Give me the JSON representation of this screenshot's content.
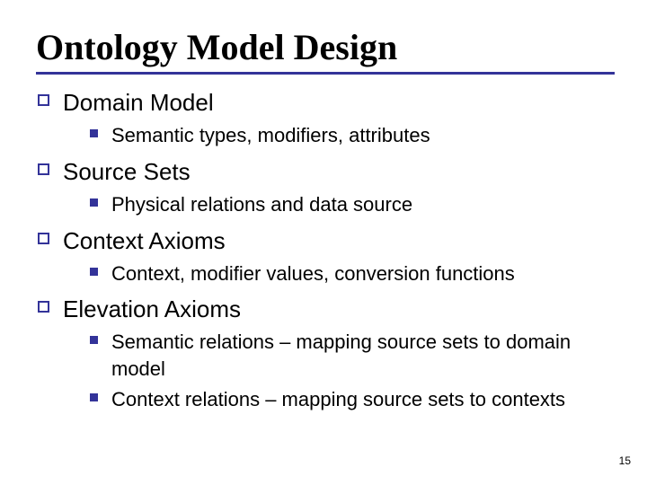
{
  "title": "Ontology Model Design",
  "title_fontsize": 40,
  "title_color": "#000000",
  "underline_color": "#333399",
  "underline_thickness": 3,
  "outer_bullet_border_color": "#333399",
  "outer_bullet_border_width": 2,
  "outer_bullet_size": 13,
  "outer_text_color": "#000000",
  "outer_fontsize": 26,
  "inner_bullet_color": "#333399",
  "inner_bullet_size": 9,
  "inner_text_color": "#000000",
  "inner_fontsize": 22,
  "page_number": "15",
  "page_number_fontsize": 12,
  "page_number_color": "#000000",
  "background_color": "#ffffff",
  "sections": [
    {
      "label": "Domain Model",
      "items": [
        "Semantic types, modifiers, attributes"
      ]
    },
    {
      "label": "Source Sets",
      "items": [
        "Physical relations and data source"
      ]
    },
    {
      "label": "Context Axioms",
      "items": [
        "Context, modifier values, conversion functions"
      ]
    },
    {
      "label": "Elevation Axioms",
      "items": [
        "Semantic relations – mapping source sets to domain model",
        "Context relations – mapping source sets to contexts"
      ]
    }
  ]
}
